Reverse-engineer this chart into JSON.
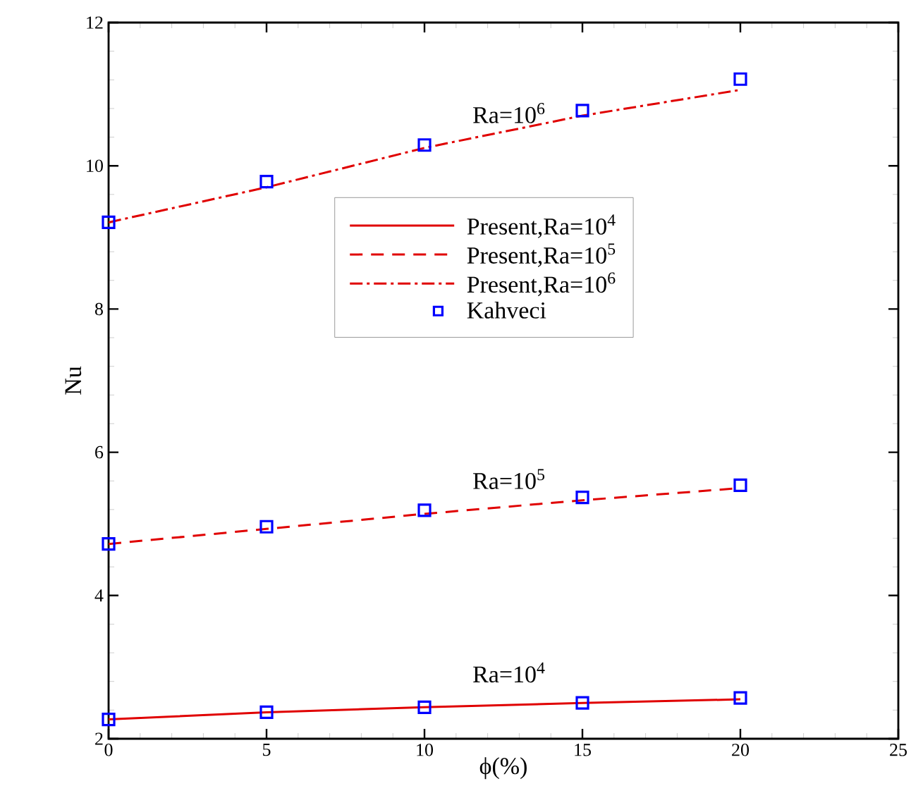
{
  "chart_data": {
    "type": "line",
    "xlabel": "ϕ(%)",
    "ylabel": "Nu",
    "x": [
      0,
      5,
      10,
      15,
      20
    ],
    "series": [
      {
        "name": "Present,Ra=10$^{4}$",
        "color": "#e00000",
        "line_style": "solid",
        "marker": "none",
        "values": [
          2.27,
          2.37,
          2.44,
          2.5,
          2.55
        ]
      },
      {
        "name": "Present,Ra=10$^{5}$",
        "color": "#e00000",
        "line_style": "dashed",
        "marker": "none",
        "values": [
          4.72,
          4.93,
          5.14,
          5.33,
          5.5
        ]
      },
      {
        "name": "Present,Ra=10$^{6}$",
        "color": "#e00000",
        "line_style": "dashdot",
        "marker": "none",
        "values": [
          9.21,
          9.7,
          10.25,
          10.7,
          11.06
        ]
      },
      {
        "name": "Kahveci",
        "color": "#0000ff",
        "type": "scatter",
        "marker": "square",
        "x": [
          0,
          5,
          10,
          15,
          20,
          0,
          5,
          10,
          15,
          20,
          0,
          5,
          10,
          15,
          20
        ],
        "values": [
          2.27,
          2.37,
          2.44,
          2.5,
          2.57,
          4.72,
          4.96,
          5.19,
          5.37,
          5.54,
          9.21,
          9.78,
          10.29,
          10.77,
          11.21
        ]
      }
    ],
    "annotations": [
      "Ra=10$^{4}$",
      "Ra=10$^{5}$",
      "Ra=10$^{6}$"
    ],
    "xlim": [
      0,
      25
    ],
    "ylim": [
      2,
      12
    ],
    "xticks": [
      0,
      5,
      10,
      15,
      20,
      25
    ],
    "yticks": [
      2,
      4,
      6,
      8,
      10,
      12
    ],
    "legend": "right",
    "grid": false
  }
}
